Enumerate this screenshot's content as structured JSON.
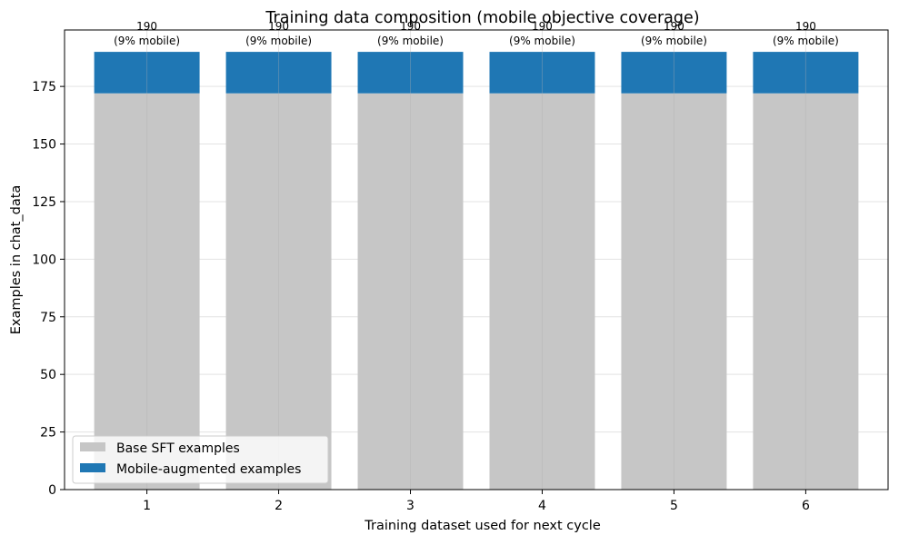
{
  "chart_data": {
    "type": "bar",
    "stacked": true,
    "title": "Training data composition (mobile objective coverage)",
    "xlabel": "Training dataset used for next cycle",
    "ylabel": "Examples in chat_data",
    "categories": [
      "1",
      "2",
      "3",
      "4",
      "5",
      "6"
    ],
    "series": [
      {
        "name": "Base SFT examples",
        "color": "#c6c6c6",
        "values": [
          172,
          172,
          172,
          172,
          172,
          172
        ]
      },
      {
        "name": "Mobile-augmented examples",
        "color": "#1f77b4",
        "values": [
          18,
          18,
          18,
          18,
          18,
          18
        ]
      }
    ],
    "totals": [
      190,
      190,
      190,
      190,
      190,
      190
    ],
    "bar_label_lines": [
      [
        "190",
        "(9% mobile)"
      ],
      [
        "190",
        "(9% mobile)"
      ],
      [
        "190",
        "(9% mobile)"
      ],
      [
        "190",
        "(9% mobile)"
      ],
      [
        "190",
        "(9% mobile)"
      ],
      [
        "190",
        "(9% mobile)"
      ]
    ],
    "ylim": [
      0,
      199.5
    ],
    "yticks": [
      0,
      25,
      50,
      75,
      100,
      125,
      150,
      175
    ],
    "grid": true,
    "legend_position": "lower-left"
  }
}
